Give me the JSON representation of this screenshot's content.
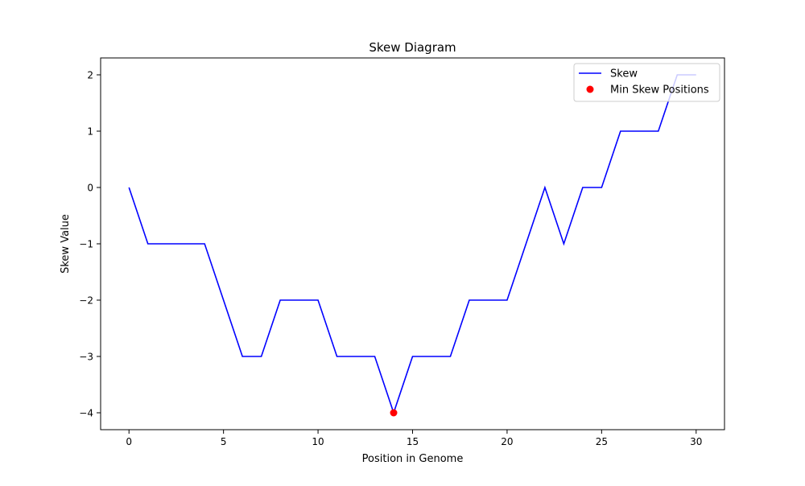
{
  "chart_data": {
    "type": "line",
    "title": "Skew Diagram",
    "xlabel": "Position in Genome",
    "ylabel": "Skew Value",
    "xlim": [
      -1.5,
      31.5
    ],
    "ylim": [
      -4.3,
      2.3
    ],
    "xticks": [
      0,
      5,
      10,
      15,
      20,
      25,
      30
    ],
    "yticks": [
      -4,
      -3,
      -2,
      -1,
      0,
      1,
      2
    ],
    "xtick_labels": [
      "0",
      "5",
      "10",
      "15",
      "20",
      "25",
      "30"
    ],
    "ytick_labels": [
      "−4",
      "−3",
      "−2",
      "−1",
      "0",
      "1",
      "2"
    ],
    "grid": false,
    "legend_position": "upper right",
    "series": [
      {
        "name": "Skew",
        "type": "line",
        "color": "#0000ff",
        "x": [
          0,
          1,
          2,
          3,
          4,
          5,
          6,
          7,
          8,
          9,
          10,
          11,
          12,
          13,
          14,
          15,
          16,
          17,
          18,
          19,
          20,
          21,
          22,
          23,
          24,
          25,
          26,
          27,
          28,
          29,
          30
        ],
        "y": [
          0,
          -1,
          -1,
          -1,
          -1,
          -2,
          -3,
          -3,
          -2,
          -2,
          -2,
          -3,
          -3,
          -3,
          -4,
          -3,
          -3,
          -3,
          -2,
          -2,
          -2,
          -1,
          0,
          -1,
          0,
          0,
          1,
          1,
          1,
          2,
          2
        ]
      },
      {
        "name": "Min Skew Positions",
        "type": "scatter",
        "color": "#ff0000",
        "x": [
          14
        ],
        "y": [
          -4
        ]
      }
    ]
  }
}
